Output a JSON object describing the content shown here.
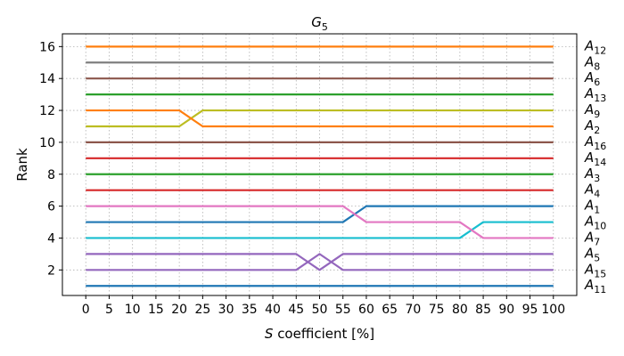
{
  "chart_data": {
    "type": "line",
    "title": "G",
    "title_subscript": "5",
    "xlabel_italic": "S",
    "xlabel_rest": " coefficient [%]",
    "ylabel": "Rank",
    "x": [
      0,
      5,
      10,
      15,
      20,
      25,
      30,
      35,
      40,
      45,
      50,
      55,
      60,
      65,
      70,
      75,
      80,
      85,
      90,
      95,
      100
    ],
    "xticks": [
      "0",
      "5",
      "10",
      "15",
      "20",
      "25",
      "30",
      "35",
      "40",
      "45",
      "50",
      "55",
      "60",
      "65",
      "70",
      "75",
      "80",
      "85",
      "90",
      "95",
      "100"
    ],
    "yticks": [
      "2",
      "4",
      "6",
      "8",
      "10",
      "12",
      "14",
      "16"
    ],
    "ylim": [
      0.4,
      16.8
    ],
    "xlim": [
      -5,
      105
    ],
    "grid": true,
    "series": [
      {
        "name": "A",
        "sub": "12",
        "color": "#ff7f0e",
        "values": [
          16,
          16,
          16,
          16,
          16,
          16,
          16,
          16,
          16,
          16,
          16,
          16,
          16,
          16,
          16,
          16,
          16,
          16,
          16,
          16,
          16
        ]
      },
      {
        "name": "A",
        "sub": "8",
        "color": "#7f7f7f",
        "values": [
          15,
          15,
          15,
          15,
          15,
          15,
          15,
          15,
          15,
          15,
          15,
          15,
          15,
          15,
          15,
          15,
          15,
          15,
          15,
          15,
          15
        ]
      },
      {
        "name": "A",
        "sub": "6",
        "color": "#8c564b",
        "values": [
          14,
          14,
          14,
          14,
          14,
          14,
          14,
          14,
          14,
          14,
          14,
          14,
          14,
          14,
          14,
          14,
          14,
          14,
          14,
          14,
          14
        ]
      },
      {
        "name": "A",
        "sub": "13",
        "color": "#2ca02c",
        "values": [
          13,
          13,
          13,
          13,
          13,
          13,
          13,
          13,
          13,
          13,
          13,
          13,
          13,
          13,
          13,
          13,
          13,
          13,
          13,
          13,
          13
        ]
      },
      {
        "name": "A",
        "sub": "9",
        "color": "#bcbd22",
        "values": [
          11,
          11,
          11,
          11,
          11,
          12,
          12,
          12,
          12,
          12,
          12,
          12,
          12,
          12,
          12,
          12,
          12,
          12,
          12,
          12,
          12
        ]
      },
      {
        "name": "A",
        "sub": "2",
        "color": "#ff7f0e",
        "values": [
          12,
          12,
          12,
          12,
          12,
          11,
          11,
          11,
          11,
          11,
          11,
          11,
          11,
          11,
          11,
          11,
          11,
          11,
          11,
          11,
          11
        ]
      },
      {
        "name": "A",
        "sub": "16",
        "color": "#8c564b",
        "values": [
          10,
          10,
          10,
          10,
          10,
          10,
          10,
          10,
          10,
          10,
          10,
          10,
          10,
          10,
          10,
          10,
          10,
          10,
          10,
          10,
          10
        ]
      },
      {
        "name": "A",
        "sub": "14",
        "color": "#d62728",
        "values": [
          9,
          9,
          9,
          9,
          9,
          9,
          9,
          9,
          9,
          9,
          9,
          9,
          9,
          9,
          9,
          9,
          9,
          9,
          9,
          9,
          9
        ]
      },
      {
        "name": "A",
        "sub": "3",
        "color": "#2ca02c",
        "values": [
          8,
          8,
          8,
          8,
          8,
          8,
          8,
          8,
          8,
          8,
          8,
          8,
          8,
          8,
          8,
          8,
          8,
          8,
          8,
          8,
          8
        ]
      },
      {
        "name": "A",
        "sub": "4",
        "color": "#d62728",
        "values": [
          7,
          7,
          7,
          7,
          7,
          7,
          7,
          7,
          7,
          7,
          7,
          7,
          7,
          7,
          7,
          7,
          7,
          7,
          7,
          7,
          7
        ]
      },
      {
        "name": "A",
        "sub": "1",
        "color": "#1f77b4",
        "values": [
          5,
          5,
          5,
          5,
          5,
          5,
          5,
          5,
          5,
          5,
          5,
          5,
          6,
          6,
          6,
          6,
          6,
          6,
          6,
          6,
          6
        ]
      },
      {
        "name": "A",
        "sub": "10",
        "color": "#17becf",
        "values": [
          4,
          4,
          4,
          4,
          4,
          4,
          4,
          4,
          4,
          4,
          4,
          4,
          4,
          4,
          4,
          4,
          4,
          5,
          5,
          5,
          5
        ]
      },
      {
        "name": "A",
        "sub": "7",
        "color": "#e377c2",
        "values": [
          6,
          6,
          6,
          6,
          6,
          6,
          6,
          6,
          6,
          6,
          6,
          6,
          5,
          5,
          5,
          5,
          5,
          4,
          4,
          4,
          4
        ]
      },
      {
        "name": "A",
        "sub": "5",
        "color": "#9467bd",
        "values": [
          3,
          3,
          3,
          3,
          3,
          3,
          3,
          3,
          3,
          3,
          2,
          3,
          3,
          3,
          3,
          3,
          3,
          3,
          3,
          3,
          3
        ]
      },
      {
        "name": "A",
        "sub": "15",
        "color": "#9467bd",
        "values": [
          2,
          2,
          2,
          2,
          2,
          2,
          2,
          2,
          2,
          2,
          3,
          2,
          2,
          2,
          2,
          2,
          2,
          2,
          2,
          2,
          2
        ]
      },
      {
        "name": "A",
        "sub": "11",
        "color": "#1f77b4",
        "values": [
          1,
          1,
          1,
          1,
          1,
          1,
          1,
          1,
          1,
          1,
          1,
          1,
          1,
          1,
          1,
          1,
          1,
          1,
          1,
          1,
          1
        ]
      }
    ],
    "right_labels": [
      {
        "name": "A",
        "sub": "12",
        "rank": 16
      },
      {
        "name": "A",
        "sub": "8",
        "rank": 15
      },
      {
        "name": "A",
        "sub": "6",
        "rank": 14
      },
      {
        "name": "A",
        "sub": "13",
        "rank": 13
      },
      {
        "name": "A",
        "sub": "9",
        "rank": 12
      },
      {
        "name": "A",
        "sub": "2",
        "rank": 11
      },
      {
        "name": "A",
        "sub": "16",
        "rank": 10
      },
      {
        "name": "A",
        "sub": "14",
        "rank": 9
      },
      {
        "name": "A",
        "sub": "3",
        "rank": 8
      },
      {
        "name": "A",
        "sub": "4",
        "rank": 7
      },
      {
        "name": "A",
        "sub": "1",
        "rank": 6
      },
      {
        "name": "A",
        "sub": "10",
        "rank": 5
      },
      {
        "name": "A",
        "sub": "7",
        "rank": 4
      },
      {
        "name": "A",
        "sub": "5",
        "rank": 3
      },
      {
        "name": "A",
        "sub": "15",
        "rank": 2
      },
      {
        "name": "A",
        "sub": "11",
        "rank": 1
      }
    ]
  }
}
